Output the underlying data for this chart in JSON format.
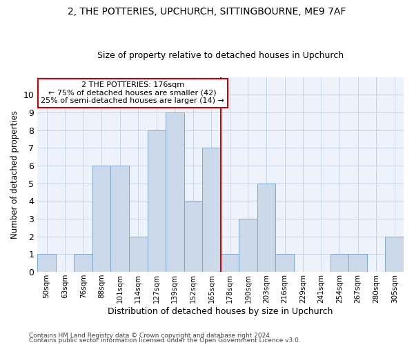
{
  "title": "2, THE POTTERIES, UPCHURCH, SITTINGBOURNE, ME9 7AF",
  "subtitle": "Size of property relative to detached houses in Upchurch",
  "xlabel": "Distribution of detached houses by size in Upchurch",
  "ylabel": "Number of detached properties",
  "bar_values": [
    1,
    0,
    1,
    6,
    6,
    2,
    8,
    9,
    4,
    7,
    1,
    3,
    5,
    1,
    0,
    0,
    1,
    1,
    0,
    2
  ],
  "bar_labels": [
    "50sqm",
    "63sqm",
    "76sqm",
    "88sqm",
    "101sqm",
    "114sqm",
    "127sqm",
    "139sqm",
    "152sqm",
    "165sqm",
    "178sqm",
    "190sqm",
    "203sqm",
    "216sqm",
    "229sqm",
    "241sqm",
    "254sqm",
    "267sqm",
    "280sqm",
    "305sqm"
  ],
  "bar_color": "#ccd9ea",
  "bar_edge_color": "#7aa8cc",
  "vline_x_index": 10,
  "vline_color": "#cc0000",
  "annotation_title": "2 THE POTTERIES: 176sqm",
  "annotation_line1": "← 75% of detached houses are smaller (42)",
  "annotation_line2": "25% of semi-detached houses are larger (14) →",
  "annotation_box_color": "#cc0000",
  "ylim": [
    0,
    11
  ],
  "yticks": [
    0,
    1,
    2,
    3,
    4,
    5,
    6,
    7,
    8,
    9,
    10
  ],
  "grid_color": "#b8cce0",
  "background_color": "#eef2fa",
  "footer1": "Contains HM Land Registry data © Crown copyright and database right 2024.",
  "footer2": "Contains public sector information licensed under the Open Government Licence v3.0.",
  "title_fontsize": 10,
  "subtitle_fontsize": 9
}
